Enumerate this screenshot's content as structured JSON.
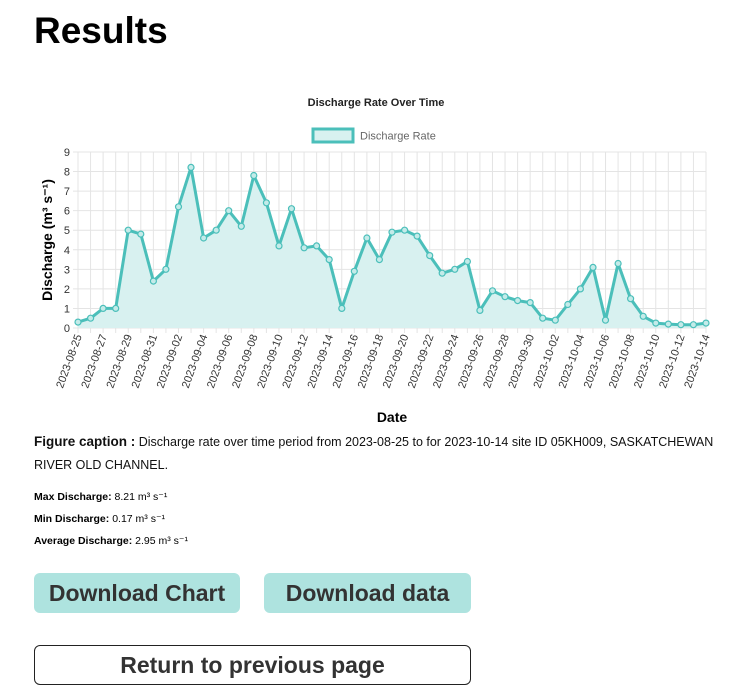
{
  "page": {
    "title": "Results"
  },
  "chart_data": {
    "type": "line",
    "title": "Discharge Rate Over Time",
    "xlabel": "Date",
    "ylabel": "Discharge (m³ s⁻¹)",
    "ylim": [
      0,
      9
    ],
    "yticks": [
      0,
      1,
      2,
      3,
      4,
      5,
      6,
      7,
      8,
      9
    ],
    "grid": true,
    "legend": "top-center",
    "line_color": "#4bbfba",
    "fill_color": "#d8f1f0",
    "xtick_labels": [
      "2023-08-25",
      "2023-08-27",
      "2023-08-29",
      "2023-08-31",
      "2023-09-02",
      "2023-09-04",
      "2023-09-06",
      "2023-09-08",
      "2023-09-10",
      "2023-09-12",
      "2023-09-14",
      "2023-09-16",
      "2023-09-18",
      "2023-09-20",
      "2023-09-22",
      "2023-09-24",
      "2023-09-26",
      "2023-09-28",
      "2023-09-30",
      "2023-10-02",
      "2023-10-04",
      "2023-10-06",
      "2023-10-08",
      "2023-10-10",
      "2023-10-12",
      "2023-10-14"
    ],
    "series": [
      {
        "name": "Discharge Rate",
        "x": [
          "2023-08-25",
          "2023-08-26",
          "2023-08-27",
          "2023-08-28",
          "2023-08-29",
          "2023-08-30",
          "2023-08-31",
          "2023-09-01",
          "2023-09-02",
          "2023-09-03",
          "2023-09-04",
          "2023-09-05",
          "2023-09-06",
          "2023-09-07",
          "2023-09-08",
          "2023-09-09",
          "2023-09-10",
          "2023-09-11",
          "2023-09-12",
          "2023-09-13",
          "2023-09-14",
          "2023-09-15",
          "2023-09-16",
          "2023-09-17",
          "2023-09-18",
          "2023-09-19",
          "2023-09-20",
          "2023-09-21",
          "2023-09-22",
          "2023-09-23",
          "2023-09-24",
          "2023-09-25",
          "2023-09-26",
          "2023-09-27",
          "2023-09-28",
          "2023-09-29",
          "2023-09-30",
          "2023-10-01",
          "2023-10-02",
          "2023-10-03",
          "2023-10-04",
          "2023-10-05",
          "2023-10-06",
          "2023-10-07",
          "2023-10-08",
          "2023-10-09",
          "2023-10-10",
          "2023-10-11",
          "2023-10-12",
          "2023-10-13",
          "2023-10-14"
        ],
        "values": [
          0.3,
          0.5,
          1.0,
          1.0,
          5.0,
          4.8,
          2.4,
          3.0,
          6.2,
          8.21,
          4.6,
          5.0,
          6.0,
          5.2,
          7.8,
          6.4,
          4.2,
          6.1,
          4.1,
          4.2,
          3.5,
          1.0,
          2.9,
          4.6,
          3.5,
          4.9,
          5.0,
          4.7,
          3.7,
          2.8,
          3.0,
          3.4,
          0.9,
          1.9,
          1.6,
          1.4,
          1.3,
          0.5,
          0.4,
          1.2,
          2.0,
          3.1,
          0.4,
          3.3,
          1.5,
          0.6,
          0.25,
          0.2,
          0.17,
          0.17,
          0.25
        ]
      }
    ]
  },
  "caption": {
    "label": "Figure caption :",
    "text": "Discharge rate over time period from 2023-08-25 to for 2023-10-14 site ID 05KH009, SASKATCHEWAN RIVER OLD CHANNEL."
  },
  "stats": {
    "max_label": "Max Discharge:",
    "max_value": "8.21 m³ s⁻¹",
    "min_label": "Min Discharge:",
    "min_value": "0.17 m³ s⁻¹",
    "avg_label": "Average Discharge:",
    "avg_value": "2.95 m³ s⁻¹"
  },
  "buttons": {
    "download_chart": "Download Chart",
    "download_data": "Download data",
    "return": "Return to previous page"
  }
}
